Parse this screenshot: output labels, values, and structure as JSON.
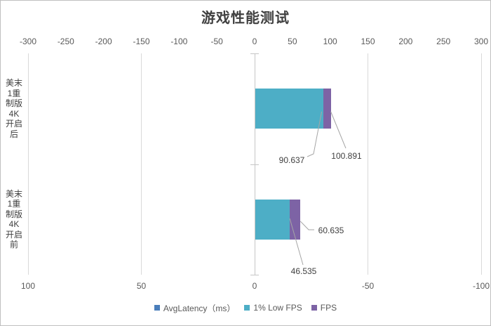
{
  "title": "游戏性能测试",
  "chart_data": {
    "type": "bar",
    "orientation": "horizontal",
    "stacked": true,
    "title": "游戏性能测试",
    "categories": [
      "美末1重制版4K开启后",
      "美末1重制版4K开启前"
    ],
    "category_label_lines": [
      [
        "美末",
        "1重",
        "制版",
        "4K",
        "开启",
        "后"
      ],
      [
        "美末",
        "1重",
        "制版",
        "4K",
        "开启",
        "前"
      ]
    ],
    "series": [
      {
        "name": "AvgLatency（ms）",
        "color": "#4a7ebb",
        "values": [
          null,
          null
        ]
      },
      {
        "name": "1% Low FPS",
        "color": "#4daec6",
        "values": [
          90.637,
          46.535
        ]
      },
      {
        "name": "FPS",
        "color": "#7d63a5",
        "values": [
          100.891,
          60.635
        ]
      }
    ],
    "data_labels": {
      "after_low": "90.637",
      "after_fps": "100.891",
      "before_low": "46.535",
      "before_fps": "60.635"
    },
    "top_axis": {
      "min": -300,
      "max": 300,
      "ticks": [
        -300,
        -250,
        -200,
        -150,
        -100,
        -50,
        0,
        50,
        100,
        150,
        200,
        250,
        300
      ]
    },
    "bottom_axis": {
      "min": -100,
      "max": 100,
      "reversed": true,
      "ticks": [
        100,
        50,
        0,
        -50,
        -100
      ]
    },
    "legend": {
      "position": "bottom",
      "entries": [
        {
          "label": "AvgLatency（ms）",
          "color": "#4a7ebb"
        },
        {
          "label": "1% Low FPS",
          "color": "#4daec6"
        },
        {
          "label": "FPS",
          "color": "#7d63a5"
        }
      ]
    },
    "grid": true,
    "colors": {
      "gridline": "#d9d9d9",
      "axis_line": "#c6c6c6",
      "tick_label": "#595959",
      "data_label": "#404040",
      "leader_line": "#a6a6a6",
      "title": "#404040"
    }
  }
}
